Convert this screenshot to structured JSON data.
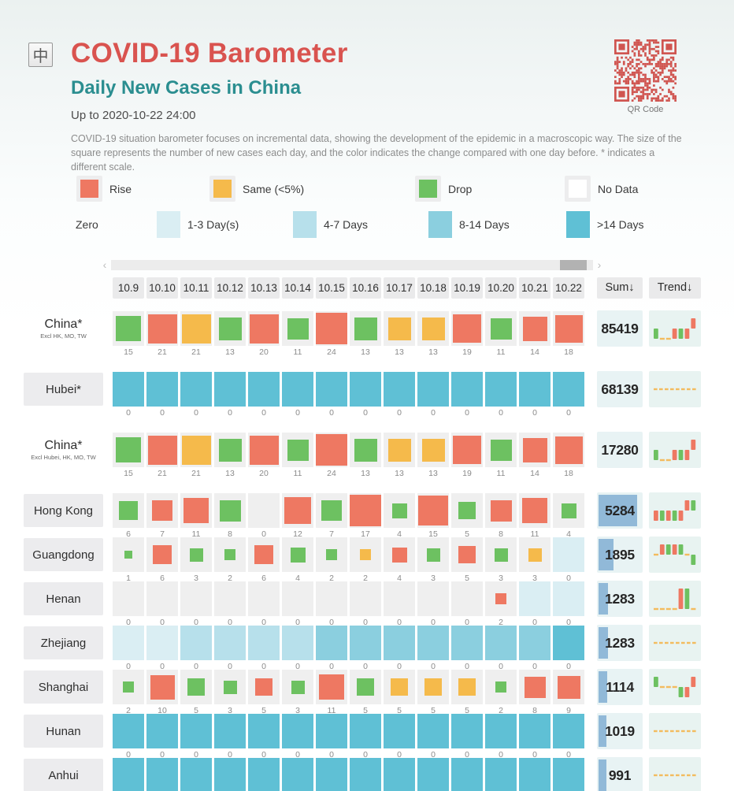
{
  "header": {
    "logo_char": "中",
    "title": "COVID-19 Barometer",
    "subtitle": "Daily New Cases in China",
    "updated": "Up to 2020-10-22 24:00",
    "description": "COVID-19 situation barometer focuses on incremental data, showing the development of the epidemic in a macroscopic way. The size of the square represents the number of new cases each day, and the color indicates the change compared with one day before. * indicates a different scale.",
    "qr_caption": "QR Code"
  },
  "legend": {
    "change": [
      {
        "label": "Rise",
        "color": "#ee7862"
      },
      {
        "label": "Same (<5%)",
        "color": "#f5ba4b"
      },
      {
        "label": "Drop",
        "color": "#6dc161"
      },
      {
        "label": "No Data",
        "color": "#ffffff"
      }
    ],
    "zero_label": "Zero",
    "zero": [
      {
        "label": "1-3 Day(s)",
        "color": "#daeef3"
      },
      {
        "label": "4-7 Days",
        "color": "#b7e0eb"
      },
      {
        "label": "8-14 Days",
        "color": "#8bcfdf"
      },
      {
        "label": ">14 Days",
        "color": "#5fc0d5"
      }
    ]
  },
  "table_headers": {
    "sum": "Sum↓",
    "trend": "Trend↓"
  },
  "chart_data": {
    "type": "heatmap",
    "title": "COVID-19 Barometer",
    "subtitle": "Daily New Cases in China",
    "updated": "Up to 2020-10-22 24:00",
    "columns": [
      "10.9",
      "10.10",
      "10.11",
      "10.12",
      "10.13",
      "10.14",
      "10.15",
      "10.16",
      "10.17",
      "10.18",
      "10.19",
      "10.20",
      "10.21",
      "10.22"
    ],
    "state_colors": {
      "rise": "#ee7862",
      "same": "#f5ba4b",
      "drop": "#6dc161",
      "nodata": "#efefef",
      "zero1": "#daeef3",
      "zero2": "#b7e0eb",
      "zero3": "#8bcfdf",
      "zero4": "#5fc0d5"
    },
    "trend_colors": {
      "rise": "#ee7862",
      "drop": "#6dc161",
      "same": "#f3bb5e"
    },
    "rows": [
      {
        "name": "China*",
        "subname": "Excl HK, MO, TW",
        "boxed": false,
        "scale_max": 24,
        "values": [
          15,
          21,
          21,
          13,
          20,
          11,
          24,
          13,
          13,
          13,
          19,
          11,
          14,
          18
        ],
        "states": [
          "drop",
          "rise",
          "same",
          "drop",
          "rise",
          "drop",
          "rise",
          "drop",
          "same",
          "same",
          "rise",
          "drop",
          "rise",
          "rise"
        ],
        "sum": 85419,
        "sum_bar_frac": 0,
        "trend": [
          "drop",
          "same",
          "same",
          "rise",
          "drop",
          "rise",
          "rise"
        ]
      },
      {
        "name": "Hubei*",
        "subname": "",
        "boxed": true,
        "scale_max": 24,
        "values": [
          0,
          0,
          0,
          0,
          0,
          0,
          0,
          0,
          0,
          0,
          0,
          0,
          0,
          0
        ],
        "states": [
          "zero4",
          "zero4",
          "zero4",
          "zero4",
          "zero4",
          "zero4",
          "zero4",
          "zero4",
          "zero4",
          "zero4",
          "zero4",
          "zero4",
          "zero4",
          "zero4"
        ],
        "sum": 68139,
        "sum_bar_frac": 0,
        "trend": [
          "same",
          "same",
          "same",
          "same",
          "same",
          "same",
          "same"
        ]
      },
      {
        "name": "China*",
        "subname": "Excl Hubei, HK, MO, TW",
        "boxed": false,
        "scale_max": 24,
        "values": [
          15,
          21,
          21,
          13,
          20,
          11,
          24,
          13,
          13,
          13,
          19,
          11,
          14,
          18
        ],
        "states": [
          "drop",
          "rise",
          "same",
          "drop",
          "rise",
          "drop",
          "rise",
          "drop",
          "same",
          "same",
          "rise",
          "drop",
          "rise",
          "rise"
        ],
        "sum": 17280,
        "sum_bar_frac": 0,
        "trend": [
          "drop",
          "same",
          "same",
          "rise",
          "drop",
          "rise",
          "rise"
        ]
      },
      {
        "name": "Hong Kong",
        "subname": "",
        "boxed": true,
        "scale_max": 17,
        "values": [
          6,
          7,
          11,
          8,
          0,
          12,
          7,
          17,
          4,
          15,
          5,
          8,
          11,
          4
        ],
        "states": [
          "drop",
          "rise",
          "rise",
          "drop",
          "nodata",
          "rise",
          "drop",
          "rise",
          "drop",
          "rise",
          "drop",
          "rise",
          "rise",
          "drop"
        ],
        "sum": 5284,
        "sum_bar_frac": 0.95,
        "trend": [
          "rise",
          "drop",
          "rise",
          "drop",
          "rise",
          "rise",
          "drop"
        ]
      },
      {
        "name": "Guangdong",
        "subname": "",
        "boxed": true,
        "scale_max": 17,
        "values": [
          1,
          6,
          3,
          2,
          6,
          4,
          2,
          2,
          4,
          3,
          5,
          3,
          3,
          0
        ],
        "states": [
          "drop",
          "rise",
          "drop",
          "drop",
          "rise",
          "drop",
          "drop",
          "same",
          "rise",
          "drop",
          "rise",
          "drop",
          "same",
          "zero1"
        ],
        "sum": 1895,
        "sum_bar_frac": 0.36,
        "trend": [
          "same",
          "rise",
          "drop",
          "rise",
          "drop",
          "same",
          "drop"
        ]
      },
      {
        "name": "Henan",
        "subname": "",
        "boxed": true,
        "scale_max": 17,
        "values": [
          0,
          0,
          0,
          0,
          0,
          0,
          0,
          0,
          0,
          0,
          0,
          2,
          0,
          0
        ],
        "states": [
          "nodata",
          "nodata",
          "nodata",
          "nodata",
          "nodata",
          "nodata",
          "nodata",
          "nodata",
          "nodata",
          "nodata",
          "nodata",
          "rise",
          "zero1",
          "zero1"
        ],
        "sum": 1283,
        "sum_bar_frac": 0.24,
        "trend": [
          "same",
          "same",
          "same",
          "same",
          "rise",
          "drop",
          "same"
        ]
      },
      {
        "name": "Zhejiang",
        "subname": "",
        "boxed": true,
        "scale_max": 17,
        "values": [
          0,
          0,
          0,
          0,
          0,
          0,
          0,
          0,
          0,
          0,
          0,
          0,
          0,
          0
        ],
        "states": [
          "zero1",
          "zero1",
          "zero2",
          "zero2",
          "zero2",
          "zero2",
          "zero3",
          "zero3",
          "zero3",
          "zero3",
          "zero3",
          "zero3",
          "zero3",
          "zero4"
        ],
        "sum": 1283,
        "sum_bar_frac": 0.24,
        "trend": [
          "same",
          "same",
          "same",
          "same",
          "same",
          "same",
          "same"
        ]
      },
      {
        "name": "Shanghai",
        "subname": "",
        "boxed": true,
        "scale_max": 17,
        "values": [
          2,
          10,
          5,
          3,
          5,
          3,
          11,
          5,
          5,
          5,
          5,
          2,
          8,
          9
        ],
        "states": [
          "drop",
          "rise",
          "drop",
          "drop",
          "rise",
          "drop",
          "rise",
          "drop",
          "same",
          "same",
          "same",
          "drop",
          "rise",
          "rise"
        ],
        "sum": 1114,
        "sum_bar_frac": 0.21,
        "trend": [
          "drop",
          "same",
          "same",
          "same",
          "drop",
          "rise",
          "rise"
        ]
      },
      {
        "name": "Hunan",
        "subname": "",
        "boxed": true,
        "scale_max": 17,
        "values": [
          0,
          0,
          0,
          0,
          0,
          0,
          0,
          0,
          0,
          0,
          0,
          0,
          0,
          0
        ],
        "states": [
          "zero4",
          "zero4",
          "zero4",
          "zero4",
          "zero4",
          "zero4",
          "zero4",
          "zero4",
          "zero4",
          "zero4",
          "zero4",
          "zero4",
          "zero4",
          "zero4"
        ],
        "sum": 1019,
        "sum_bar_frac": 0.19,
        "trend": [
          "same",
          "same",
          "same",
          "same",
          "same",
          "same",
          "same"
        ]
      },
      {
        "name": "Anhui",
        "subname": "",
        "boxed": true,
        "scale_max": 17,
        "values": [
          0,
          0,
          0,
          0,
          0,
          0,
          0,
          0,
          0,
          0,
          0,
          0,
          0,
          0
        ],
        "states": [
          "zero4",
          "zero4",
          "zero4",
          "zero4",
          "zero4",
          "zero4",
          "zero4",
          "zero4",
          "zero4",
          "zero4",
          "zero4",
          "zero4",
          "zero4",
          "zero4"
        ],
        "sum": 991,
        "sum_bar_frac": 0.19,
        "trend": [
          "same",
          "same",
          "same",
          "same",
          "same",
          "same",
          "same"
        ]
      }
    ]
  }
}
